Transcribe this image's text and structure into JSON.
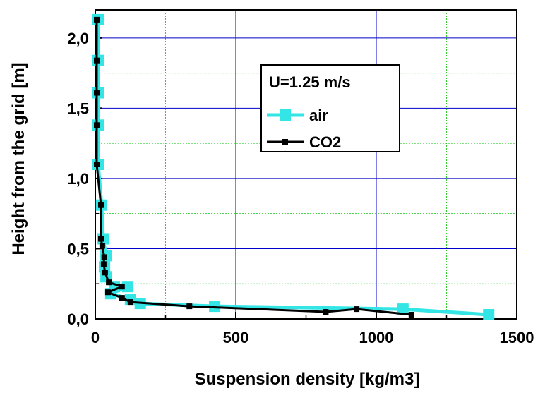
{
  "chart_data": {
    "type": "line",
    "xlabel": "Suspension density [kg/m3]",
    "ylabel": "Height from the grid [m]",
    "xlim": [
      0,
      1500
    ],
    "ylim": [
      0,
      2.2
    ],
    "x_ticks": [
      0,
      500,
      1000,
      1500
    ],
    "x_tick_labels": [
      "0",
      "500",
      "1000",
      "1500"
    ],
    "y_ticks": [
      0,
      0.5,
      1.0,
      1.5,
      2.0
    ],
    "y_tick_labels": [
      "0,0",
      "0,5",
      "1,0",
      "1,5",
      "2,0"
    ],
    "major_grid_color": "#0000cc",
    "minor_grid_color": "#33cc33",
    "legend": {
      "title": "U=1.25 m/s",
      "placement": "upper-middle"
    },
    "series": [
      {
        "name": "air",
        "color": "#33e5e5",
        "marker": "square",
        "points": [
          [
            10,
            2.13
          ],
          [
            10,
            1.84
          ],
          [
            10,
            1.61
          ],
          [
            10,
            1.38
          ],
          [
            10,
            1.1
          ],
          [
            22,
            0.81
          ],
          [
            28,
            0.57
          ],
          [
            38,
            0.45
          ],
          [
            33,
            0.37
          ],
          [
            38,
            0.3
          ],
          [
            68,
            0.23
          ],
          [
            115,
            0.23
          ],
          [
            55,
            0.18
          ],
          [
            125,
            0.14
          ],
          [
            160,
            0.11
          ],
          [
            425,
            0.09
          ],
          [
            1095,
            0.07
          ],
          [
            1400,
            0.03
          ]
        ]
      },
      {
        "name": "CO2",
        "color": "#000000",
        "marker": "square",
        "points": [
          [
            5,
            2.13
          ],
          [
            5,
            1.84
          ],
          [
            5,
            1.61
          ],
          [
            5,
            1.38
          ],
          [
            5,
            1.1
          ],
          [
            20,
            0.81
          ],
          [
            20,
            0.57
          ],
          [
            25,
            0.52
          ],
          [
            32,
            0.44
          ],
          [
            30,
            0.39
          ],
          [
            35,
            0.33
          ],
          [
            48,
            0.26
          ],
          [
            95,
            0.23
          ],
          [
            45,
            0.19
          ],
          [
            95,
            0.15
          ],
          [
            125,
            0.12
          ],
          [
            335,
            0.09
          ],
          [
            820,
            0.05
          ],
          [
            930,
            0.07
          ],
          [
            1125,
            0.03
          ]
        ]
      }
    ]
  }
}
